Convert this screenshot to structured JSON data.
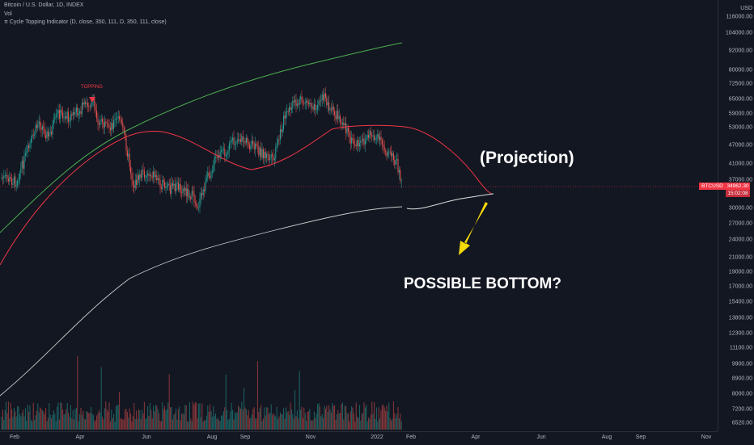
{
  "header": {
    "symbol_line": "Bitcoin / U.S. Dollar, 1D, INDEX",
    "vol_label": "Vol",
    "indicator_line": "π Cycle Topping Indicator (D, close, 350, 111, D, 350, 111, close)"
  },
  "price_axis": {
    "currency": "USD",
    "ticks": [
      "116000.00",
      "104000.00",
      "92000.00",
      "80000.00",
      "72500.00",
      "65000.00",
      "59000.00",
      "53000.00",
      "47000.00",
      "41000.00",
      "37000.00",
      "30000.00",
      "27000.00",
      "24000.00",
      "21000.00",
      "19000.00",
      "17000.00",
      "15400.00",
      "13800.00",
      "12300.00",
      "11100.00",
      "9900.00",
      "8900.00",
      "8000.00",
      "7200.00",
      "6520.00"
    ]
  },
  "time_axis": {
    "ticks": [
      "Feb",
      "Apr",
      "Jun",
      "Aug",
      "Sep",
      "Nov",
      "2022",
      "Feb",
      "Apr",
      "Jun",
      "Aug",
      "Sep",
      "Nov"
    ]
  },
  "last_price": {
    "symbol": "BTCUSD",
    "price": "34962.30",
    "countdown": "15:02:08",
    "color": "#f23645"
  },
  "annotations": {
    "topping": "TOPPING",
    "projection": "(Projection)",
    "bottom": "POSSIBLE BOTTOM?"
  },
  "colors": {
    "background": "#131722",
    "up": "#26a69a",
    "down": "#ef5350",
    "ma350x2": "#4caf50",
    "ma111": "#f23645",
    "ma350": "#c8c8c8",
    "arrow": "#f5d90a"
  }
}
